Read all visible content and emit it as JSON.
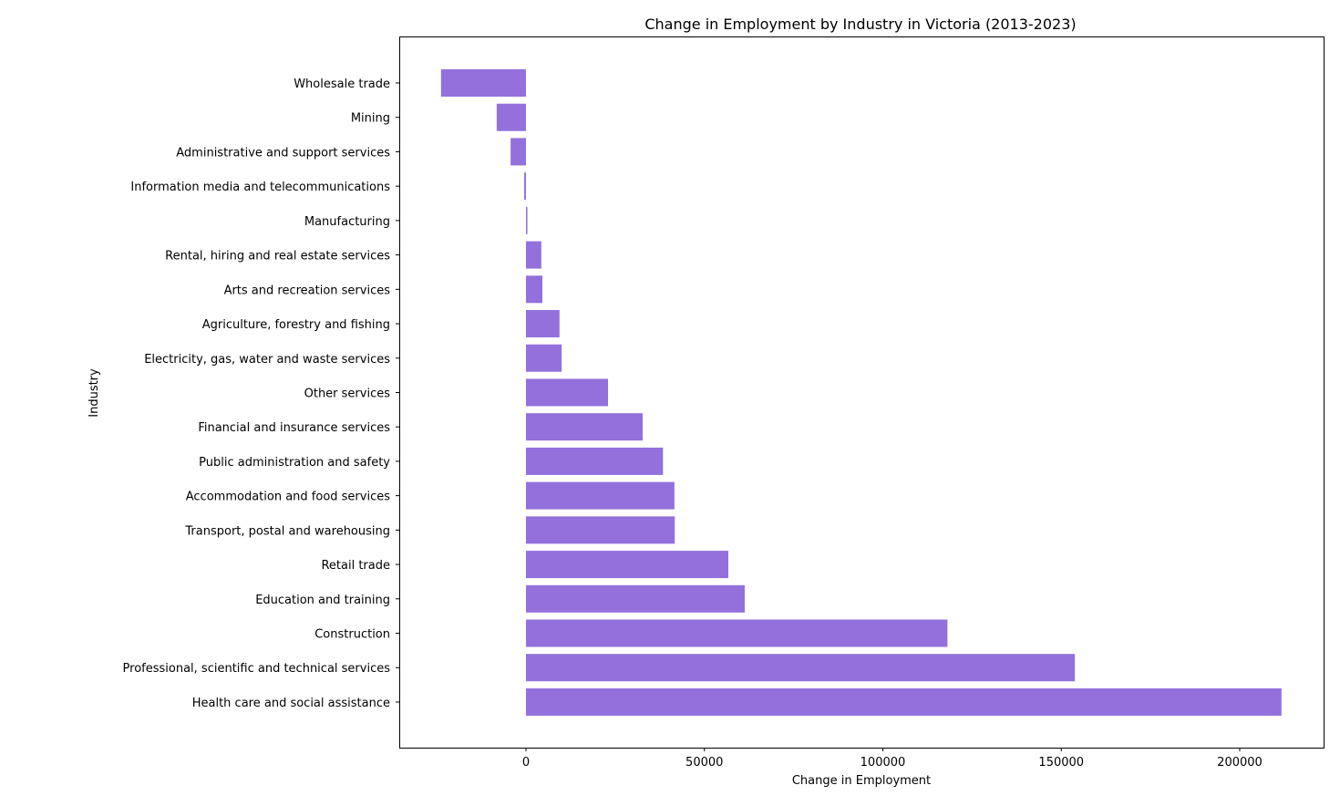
{
  "chart_data": {
    "type": "bar",
    "orientation": "horizontal",
    "title": "Change in Employment by Industry in Victoria (2013-2023)",
    "xlabel": "Change in Employment",
    "ylabel": "Industry",
    "xlim": [
      -35500,
      223500
    ],
    "xticks": [
      0,
      50000,
      100000,
      150000,
      200000
    ],
    "grid": false,
    "bar_color": "#9370db",
    "categories": [
      "Wholesale trade",
      "Mining",
      "Administrative and support services",
      "Information media and telecommunications",
      "Manufacturing",
      "Rental, hiring and real estate services",
      "Arts and recreation services",
      "Agriculture, forestry and fishing",
      "Electricity, gas, water and waste services",
      "Other services",
      "Financial and insurance services",
      "Public administration and safety",
      "Accommodation and food services",
      "Transport, postal and warehousing",
      "Retail trade",
      "Education and training",
      "Construction",
      "Professional, scientific and technical services",
      "Health care and social assistance"
    ],
    "values": [
      -23800,
      -8200,
      -4300,
      -500,
      400,
      4300,
      4600,
      9400,
      10000,
      23000,
      32700,
      38400,
      41600,
      41700,
      56700,
      61300,
      118100,
      153800,
      211700
    ]
  }
}
